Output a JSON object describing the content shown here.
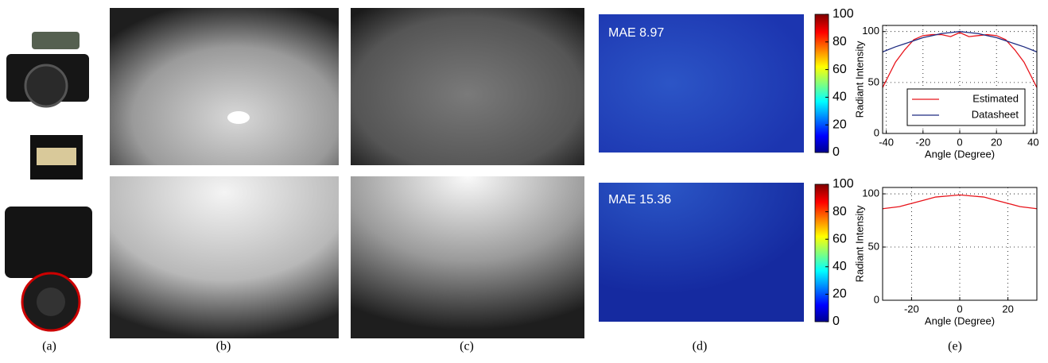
{
  "panel_labels": [
    "(a)",
    "(b)",
    "(c)",
    "(d)",
    "(e)"
  ],
  "error_maps": [
    {
      "label": "MAE 8.97"
    },
    {
      "label": "MAE 15.36"
    }
  ],
  "colorbars": [
    {
      "lim": [
        0,
        100
      ],
      "ticks": [
        0,
        20,
        40,
        60,
        80,
        100
      ]
    },
    {
      "lim": [
        0,
        100
      ],
      "ticks": [
        0,
        20,
        40,
        60,
        80,
        100
      ]
    }
  ],
  "chart_data": [
    {
      "type": "line",
      "xlabel": "Angle (Degree)",
      "ylabel": "Radiant Intensity",
      "x": [
        -42,
        -35,
        -30,
        -25,
        -20,
        -15,
        -10,
        -5,
        0,
        5,
        10,
        15,
        20,
        25,
        30,
        35,
        42
      ],
      "series": [
        {
          "name": "Estimated",
          "color": "#e8141b",
          "values": [
            45,
            70,
            82,
            92,
            96,
            97,
            97,
            95,
            99,
            95,
            96,
            97,
            96,
            92,
            82,
            70,
            45
          ]
        },
        {
          "name": "Datasheet",
          "color": "#1d2a80",
          "values": [
            80,
            85,
            88,
            91,
            94,
            96,
            98,
            99,
            100,
            99,
            98,
            96,
            94,
            91,
            88,
            85,
            80
          ]
        }
      ],
      "xlim": [
        -42,
        42
      ],
      "xticks": [
        -40,
        -20,
        0,
        20,
        40
      ],
      "ylim": [
        0,
        106
      ],
      "yticks": [
        0,
        50,
        100
      ],
      "grid": true,
      "legend": "lower center"
    },
    {
      "type": "line",
      "xlabel": "Angle (Degree)",
      "ylabel": "Radiant Intensity",
      "x": [
        -32,
        -25,
        -20,
        -15,
        -10,
        -5,
        0,
        5,
        10,
        15,
        20,
        25,
        32
      ],
      "series": [
        {
          "color": "#e8141b",
          "values": [
            86,
            88,
            91,
            94,
            97,
            98,
            99,
            98,
            97,
            94,
            91,
            88,
            86
          ]
        }
      ],
      "xlim": [
        -32,
        32
      ],
      "xticks": [
        -20,
        0,
        20
      ],
      "ylim": [
        0,
        106
      ],
      "yticks": [
        0,
        50,
        100
      ],
      "grid": true
    }
  ]
}
